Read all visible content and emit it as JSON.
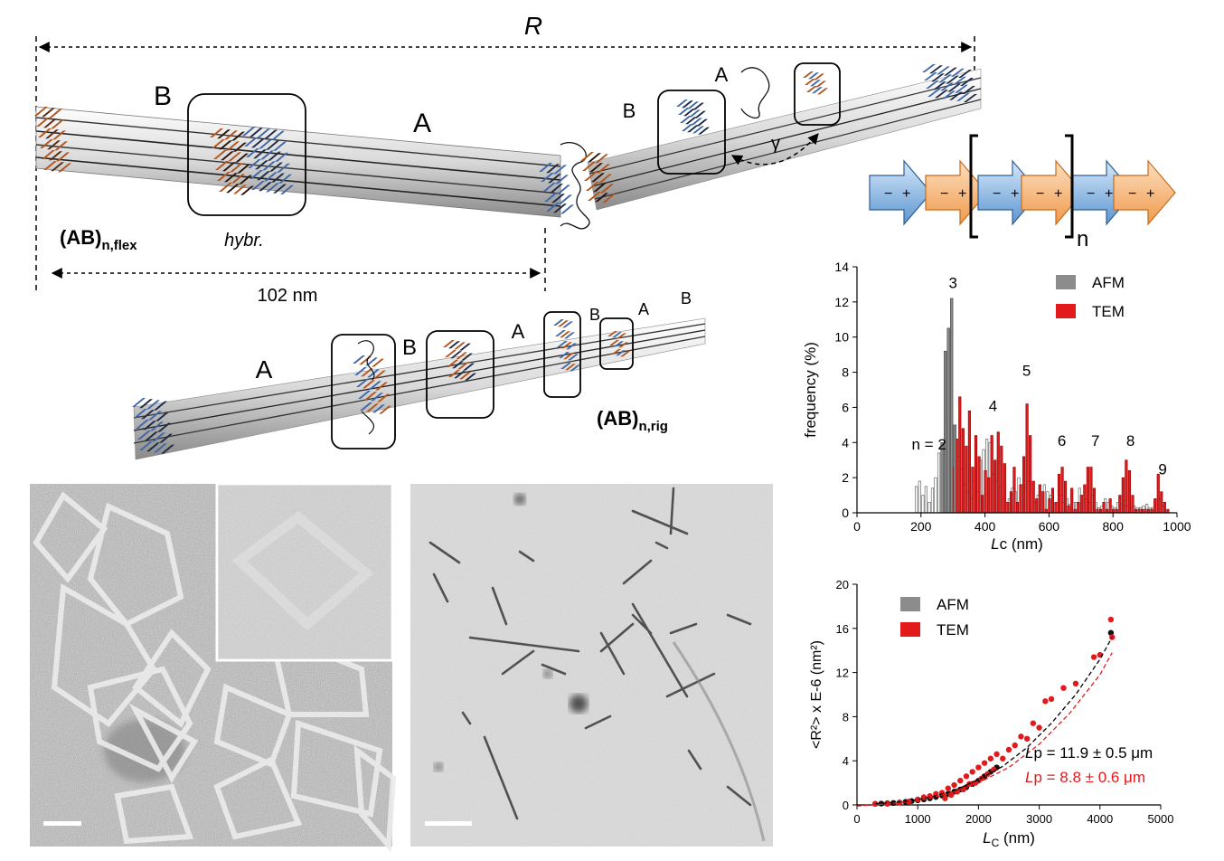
{
  "schematic": {
    "R_label": "R",
    "flex_A_label": "A",
    "flex_B_label": "B",
    "flex_name": "(AB)",
    "flex_sub": "n,flex",
    "hybr_label": "hybr.",
    "length_label": "102 nm",
    "upper_B_label": "B",
    "upper_A_label": "A",
    "gamma_label": "γ",
    "rig_A1_label": "A",
    "rig_B1_label": "B",
    "rig_A2_label": "A",
    "rig_B2_label": "B",
    "rig_A3_label": "A",
    "rig_B3_label": "B",
    "rig_name": "(AB)",
    "rig_sub": "n,rig",
    "arrow_charge_minus": "−",
    "arrow_charge_plus": "+",
    "repeat_n": "n"
  },
  "colors": {
    "orange": "#b4541c",
    "blue": "#3f67a8",
    "arrow_blue": "#6fa3d6",
    "arrow_orange": "#f3a35a",
    "afm": "#8c8c8c",
    "tem": "#e31a1c"
  },
  "chart_data": [
    {
      "type": "bar",
      "title": "",
      "xlabel_italic": "L",
      "xlabel_rest": "c (nm)",
      "ylabel": "frequency (%)",
      "xlim": [
        0,
        1000
      ],
      "ylim": [
        0,
        14
      ],
      "xticks": [
        0,
        200,
        400,
        600,
        800,
        1000
      ],
      "yticks": [
        0,
        2,
        4,
        6,
        8,
        10,
        12,
        14
      ],
      "legend": [
        "AFM",
        "TEM"
      ],
      "legend_position": "top-right",
      "peak_labels": [
        {
          "text": "n = 2",
          "x": 225,
          "y": 3.6
        },
        {
          "text": "3",
          "x": 300,
          "y": 12.8
        },
        {
          "text": "4",
          "x": 425,
          "y": 5.8
        },
        {
          "text": "5",
          "x": 530,
          "y": 7.8
        },
        {
          "text": "6",
          "x": 640,
          "y": 3.8
        },
        {
          "text": "7",
          "x": 745,
          "y": 3.8
        },
        {
          "text": "8",
          "x": 855,
          "y": 3.8
        },
        {
          "text": "9",
          "x": 955,
          "y": 2.2
        }
      ],
      "series": [
        {
          "name": "AFM",
          "x": [
            190,
            200,
            210,
            220,
            230,
            240,
            250,
            260,
            270,
            280,
            290,
            300,
            310,
            320,
            330,
            340,
            350,
            360,
            370,
            380,
            390,
            400,
            410,
            420,
            430,
            440,
            450,
            460,
            470,
            480,
            490,
            500,
            510,
            520,
            530,
            540,
            550,
            560,
            570,
            580,
            590,
            600,
            610,
            620,
            630,
            640,
            650,
            660,
            670,
            680,
            690,
            700,
            710,
            720,
            730,
            740,
            750,
            760,
            770,
            780,
            790,
            800,
            810,
            820,
            830,
            840,
            850,
            860,
            870,
            880,
            890,
            900,
            910,
            920,
            930,
            940,
            950,
            960
          ],
          "values": [
            1.5,
            1.8,
            1.0,
            1.5,
            0.6,
            1.4,
            2.0,
            3.4,
            4.0,
            9.2,
            10.5,
            12.2,
            5.0,
            3.2,
            2.5,
            1.6,
            1.2,
            0.8,
            1.8,
            1.2,
            3.0,
            3.6,
            4.2,
            4.0,
            2.2,
            1.8,
            1.5,
            0.8,
            0.6,
            0.8,
            1.4,
            1.2,
            2.0,
            1.6,
            1.4,
            1.8,
            1.6,
            0.6,
            1.0,
            1.2,
            1.6,
            1.2,
            1.0,
            0.5,
            0.6,
            1.0,
            0.6,
            0.8,
            0.5,
            0.6,
            0.6,
            1.4,
            1.0,
            0.8,
            0.6,
            1.0,
            0.6,
            0.3,
            0.4,
            0.8,
            0.6,
            0.4,
            0.3,
            0.6,
            0.5,
            0.4,
            0.4,
            0.3,
            0.4,
            0.3,
            0.3,
            0.4,
            0.5,
            0.3,
            0.3,
            0.8,
            0.8,
            0.4
          ]
        },
        {
          "name": "TEM",
          "x": [
            300,
            310,
            320,
            330,
            340,
            350,
            360,
            370,
            380,
            390,
            400,
            410,
            420,
            430,
            440,
            450,
            460,
            470,
            480,
            490,
            500,
            510,
            520,
            530,
            540,
            550,
            560,
            570,
            580,
            590,
            600,
            610,
            620,
            630,
            640,
            650,
            660,
            670,
            680,
            690,
            700,
            710,
            720,
            730,
            740,
            750,
            760,
            770,
            780,
            790,
            800,
            810,
            820,
            830,
            840,
            850,
            860,
            870,
            880,
            890,
            900,
            910,
            920,
            930,
            940,
            950,
            960,
            970
          ],
          "values": [
            2.6,
            4.2,
            6.6,
            4.8,
            3.8,
            5.8,
            2.6,
            4.4,
            3.2,
            1.0,
            2.4,
            2.0,
            4.4,
            3.0,
            4.6,
            3.8,
            2.8,
            0.6,
            1.2,
            2.6,
            0.6,
            1.6,
            3.2,
            6.2,
            4.4,
            1.8,
            0.8,
            1.6,
            1.2,
            0.2,
            0.8,
            1.4,
            0.6,
            2.2,
            2.6,
            1.8,
            0.4,
            1.4,
            0.2,
            0.6,
            1.0,
            1.6,
            2.6,
            2.6,
            1.4,
            0.2,
            0.2,
            0.6,
            0.2,
            0.8,
            0.2,
            0.2,
            1.0,
            2.0,
            3.0,
            2.4,
            1.0,
            0.2,
            0.2,
            0.2,
            0.2,
            0.2,
            0.2,
            0.8,
            2.2,
            1.2,
            0.6,
            0.2
          ]
        }
      ]
    },
    {
      "type": "scatter",
      "title": "",
      "xlabel_italic": "L",
      "xlabel_sub": "C",
      "xlabel_rest": " (nm)",
      "ylabel": "<R²> x E-6 (nm²)",
      "xlim": [
        0,
        5000
      ],
      "ylim": [
        0,
        20
      ],
      "xticks": [
        0,
        1000,
        2000,
        3000,
        4000,
        5000
      ],
      "yticks": [
        0,
        4,
        8,
        12,
        16,
        20
      ],
      "legend": [
        "AFM",
        "TEM"
      ],
      "legend_position": "top-left",
      "annotation_afm": "p =  11.9 ± 0.5 μm",
      "annotation_tem": "p =  8.8 ± 0.6 μm",
      "annotation_prefix": "L",
      "fit_afm": [
        [
          300,
          0.1
        ],
        [
          800,
          0.3
        ],
        [
          1200,
          0.7
        ],
        [
          1600,
          1.3
        ],
        [
          2000,
          2.3
        ],
        [
          2400,
          3.5
        ],
        [
          2800,
          5.2
        ],
        [
          3200,
          7.4
        ],
        [
          3600,
          10.0
        ],
        [
          4000,
          13.2
        ],
        [
          4200,
          15.2
        ]
      ],
      "fit_tem": [
        [
          0,
          -0.1
        ],
        [
          500,
          0.1
        ],
        [
          1000,
          0.4
        ],
        [
          1500,
          1.0
        ],
        [
          2000,
          2.0
        ],
        [
          2500,
          3.4
        ],
        [
          3000,
          5.5
        ],
        [
          3500,
          8.3
        ],
        [
          4000,
          11.8
        ],
        [
          4200,
          13.8
        ]
      ],
      "series": [
        {
          "name": "AFM",
          "x": [
            300,
            400,
            500,
            600,
            700,
            800,
            900,
            1000,
            1100,
            1200,
            1300,
            1400,
            1500,
            1600,
            1700,
            1800,
            1900,
            2000,
            2100,
            2200,
            2300,
            4180
          ],
          "y": [
            0.1,
            0.12,
            0.15,
            0.18,
            0.22,
            0.28,
            0.35,
            0.42,
            0.5,
            0.6,
            0.72,
            0.85,
            1.0,
            1.2,
            1.4,
            1.6,
            1.9,
            2.2,
            2.6,
            3.0,
            3.4,
            15.6
          ]
        },
        {
          "name": "TEM",
          "x": [
            300,
            500,
            700,
            850,
            1000,
            1100,
            1200,
            1300,
            1400,
            1450,
            1500,
            1550,
            1600,
            1650,
            1700,
            1750,
            1800,
            1850,
            1900,
            1950,
            2000,
            2050,
            2100,
            2150,
            2200,
            2250,
            2300,
            2400,
            2500,
            2600,
            2700,
            2800,
            2900,
            3000,
            3100,
            3200,
            3400,
            3600,
            3900,
            4000,
            4180,
            4200
          ],
          "y": [
            0.1,
            0.1,
            0.2,
            0.3,
            0.5,
            0.7,
            0.8,
            1.0,
            1.1,
            0.6,
            1.5,
            0.9,
            1.8,
            1.2,
            2.2,
            1.4,
            2.6,
            1.9,
            3.0,
            2.0,
            3.4,
            2.4,
            3.8,
            2.8,
            4.2,
            3.2,
            4.6,
            4.2,
            5.0,
            5.4,
            6.2,
            6.0,
            7.4,
            7.0,
            9.4,
            9.6,
            10.6,
            11.0,
            13.4,
            13.6,
            16.8,
            15.2
          ]
        }
      ]
    }
  ],
  "micrographs": {
    "left_panel": "tem-polygons",
    "right_panel": "tem-filaments"
  }
}
